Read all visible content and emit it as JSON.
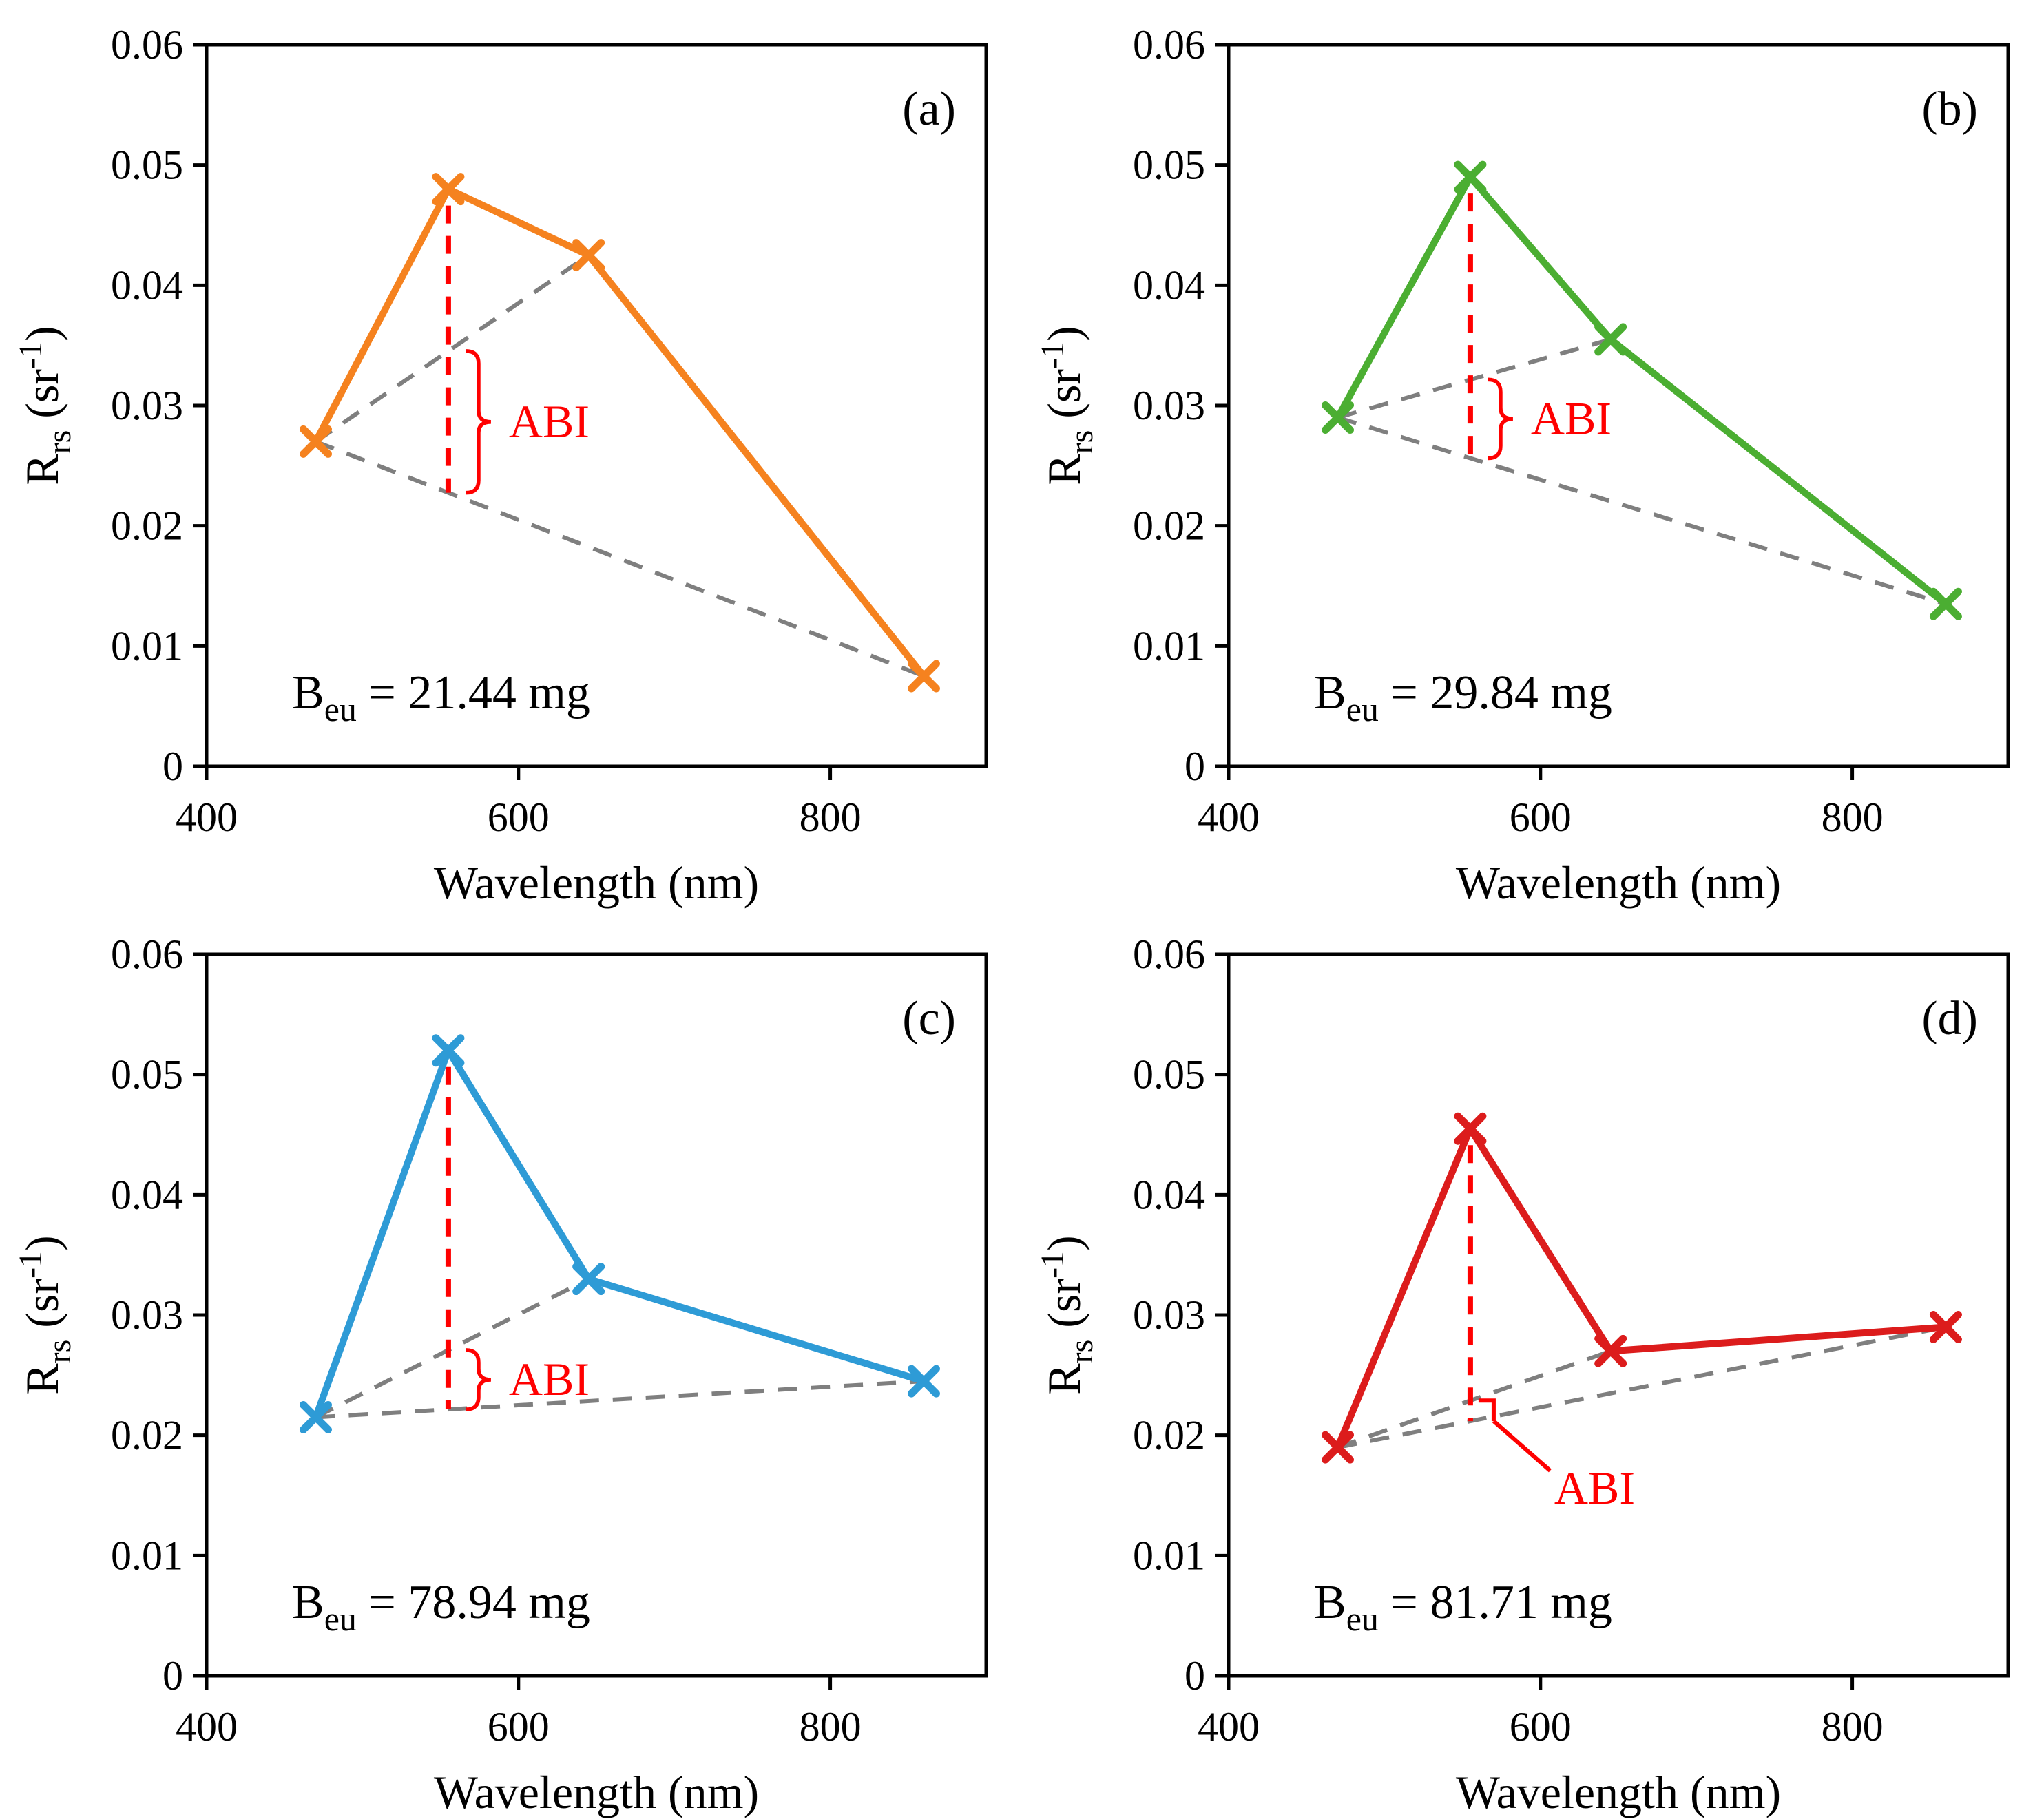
{
  "figure": {
    "background": "#FFFFFF",
    "layout": "2x2-panel-grid"
  },
  "chart_data": [
    {
      "type": "line",
      "panel_label": "(a)",
      "color": "#F5821F",
      "x": [
        470,
        555,
        645,
        860
      ],
      "y": [
        0.027,
        0.048,
        0.0425,
        0.0075
      ],
      "b_eu_mg": 21.44,
      "stat": {
        "main": "B",
        "sub": "eu",
        "rest": " = 21.44 mg"
      },
      "xlabel": "Wavelength (nm)",
      "ylabel": "Rrs (sr-1)",
      "ylabel_parts": {
        "main": "R",
        "sub": "rs",
        "mid": " (sr",
        "sup": "-1",
        "end": ")"
      },
      "xlim": [
        400,
        900
      ],
      "ylim": [
        0,
        0.06
      ],
      "xticks": [
        400,
        600,
        800
      ],
      "yticks": [
        0,
        0.01,
        0.02,
        0.03,
        0.04,
        0.05,
        0.06
      ],
      "grid": false,
      "legend": "none",
      "baseline_color": "#7F7F7F",
      "abi": {
        "label": "ABI",
        "color": "#FF0000",
        "style": "brace"
      }
    },
    {
      "type": "line",
      "panel_label": "(b)",
      "color": "#4BAE32",
      "x": [
        470,
        555,
        645,
        860
      ],
      "y": [
        0.029,
        0.049,
        0.0355,
        0.0135
      ],
      "b_eu_mg": 29.84,
      "stat": {
        "main": "B",
        "sub": "eu",
        "rest": " = 29.84 mg"
      },
      "xlabel": "Wavelength (nm)",
      "ylabel": "Rrs (sr-1)",
      "ylabel_parts": {
        "main": "R",
        "sub": "rs",
        "mid": " (sr",
        "sup": "-1",
        "end": ")"
      },
      "xlim": [
        400,
        900
      ],
      "ylim": [
        0,
        0.06
      ],
      "xticks": [
        400,
        600,
        800
      ],
      "yticks": [
        0,
        0.01,
        0.02,
        0.03,
        0.04,
        0.05,
        0.06
      ],
      "grid": false,
      "legend": "none",
      "baseline_color": "#7F7F7F",
      "abi": {
        "label": "ABI",
        "color": "#FF0000",
        "style": "brace"
      }
    },
    {
      "type": "line",
      "panel_label": "(c)",
      "color": "#2E9BD6",
      "x": [
        470,
        555,
        645,
        860
      ],
      "y": [
        0.0215,
        0.052,
        0.033,
        0.0245
      ],
      "b_eu_mg": 78.94,
      "stat": {
        "main": "B",
        "sub": "eu",
        "rest": " = 78.94 mg"
      },
      "xlabel": "Wavelength (nm)",
      "ylabel": "Rrs (sr-1)",
      "ylabel_parts": {
        "main": "R",
        "sub": "rs",
        "mid": " (sr",
        "sup": "-1",
        "end": ")"
      },
      "xlim": [
        400,
        900
      ],
      "ylim": [
        0,
        0.06
      ],
      "xticks": [
        400,
        600,
        800
      ],
      "yticks": [
        0,
        0.01,
        0.02,
        0.03,
        0.04,
        0.05,
        0.06
      ],
      "grid": false,
      "legend": "none",
      "baseline_color": "#7F7F7F",
      "abi": {
        "label": "ABI",
        "color": "#FF0000",
        "style": "brace"
      }
    },
    {
      "type": "line",
      "panel_label": "(d)",
      "color": "#DC1C1C",
      "x": [
        470,
        555,
        645,
        860
      ],
      "y": [
        0.019,
        0.0455,
        0.027,
        0.029
      ],
      "b_eu_mg": 81.71,
      "stat": {
        "main": "B",
        "sub": "eu",
        "rest": " = 81.71 mg"
      },
      "xlabel": "Wavelength (nm)",
      "ylabel": "Rrs (sr-1)",
      "ylabel_parts": {
        "main": "R",
        "sub": "rs",
        "mid": " (sr",
        "sup": "-1",
        "end": ")"
      },
      "xlim": [
        400,
        900
      ],
      "ylim": [
        0,
        0.06
      ],
      "xticks": [
        400,
        600,
        800
      ],
      "yticks": [
        0,
        0.01,
        0.02,
        0.03,
        0.04,
        0.05,
        0.06
      ],
      "grid": false,
      "legend": "none",
      "baseline_color": "#7F7F7F",
      "abi": {
        "label": "ABI",
        "color": "#FF0000",
        "style": "arrow"
      }
    }
  ]
}
